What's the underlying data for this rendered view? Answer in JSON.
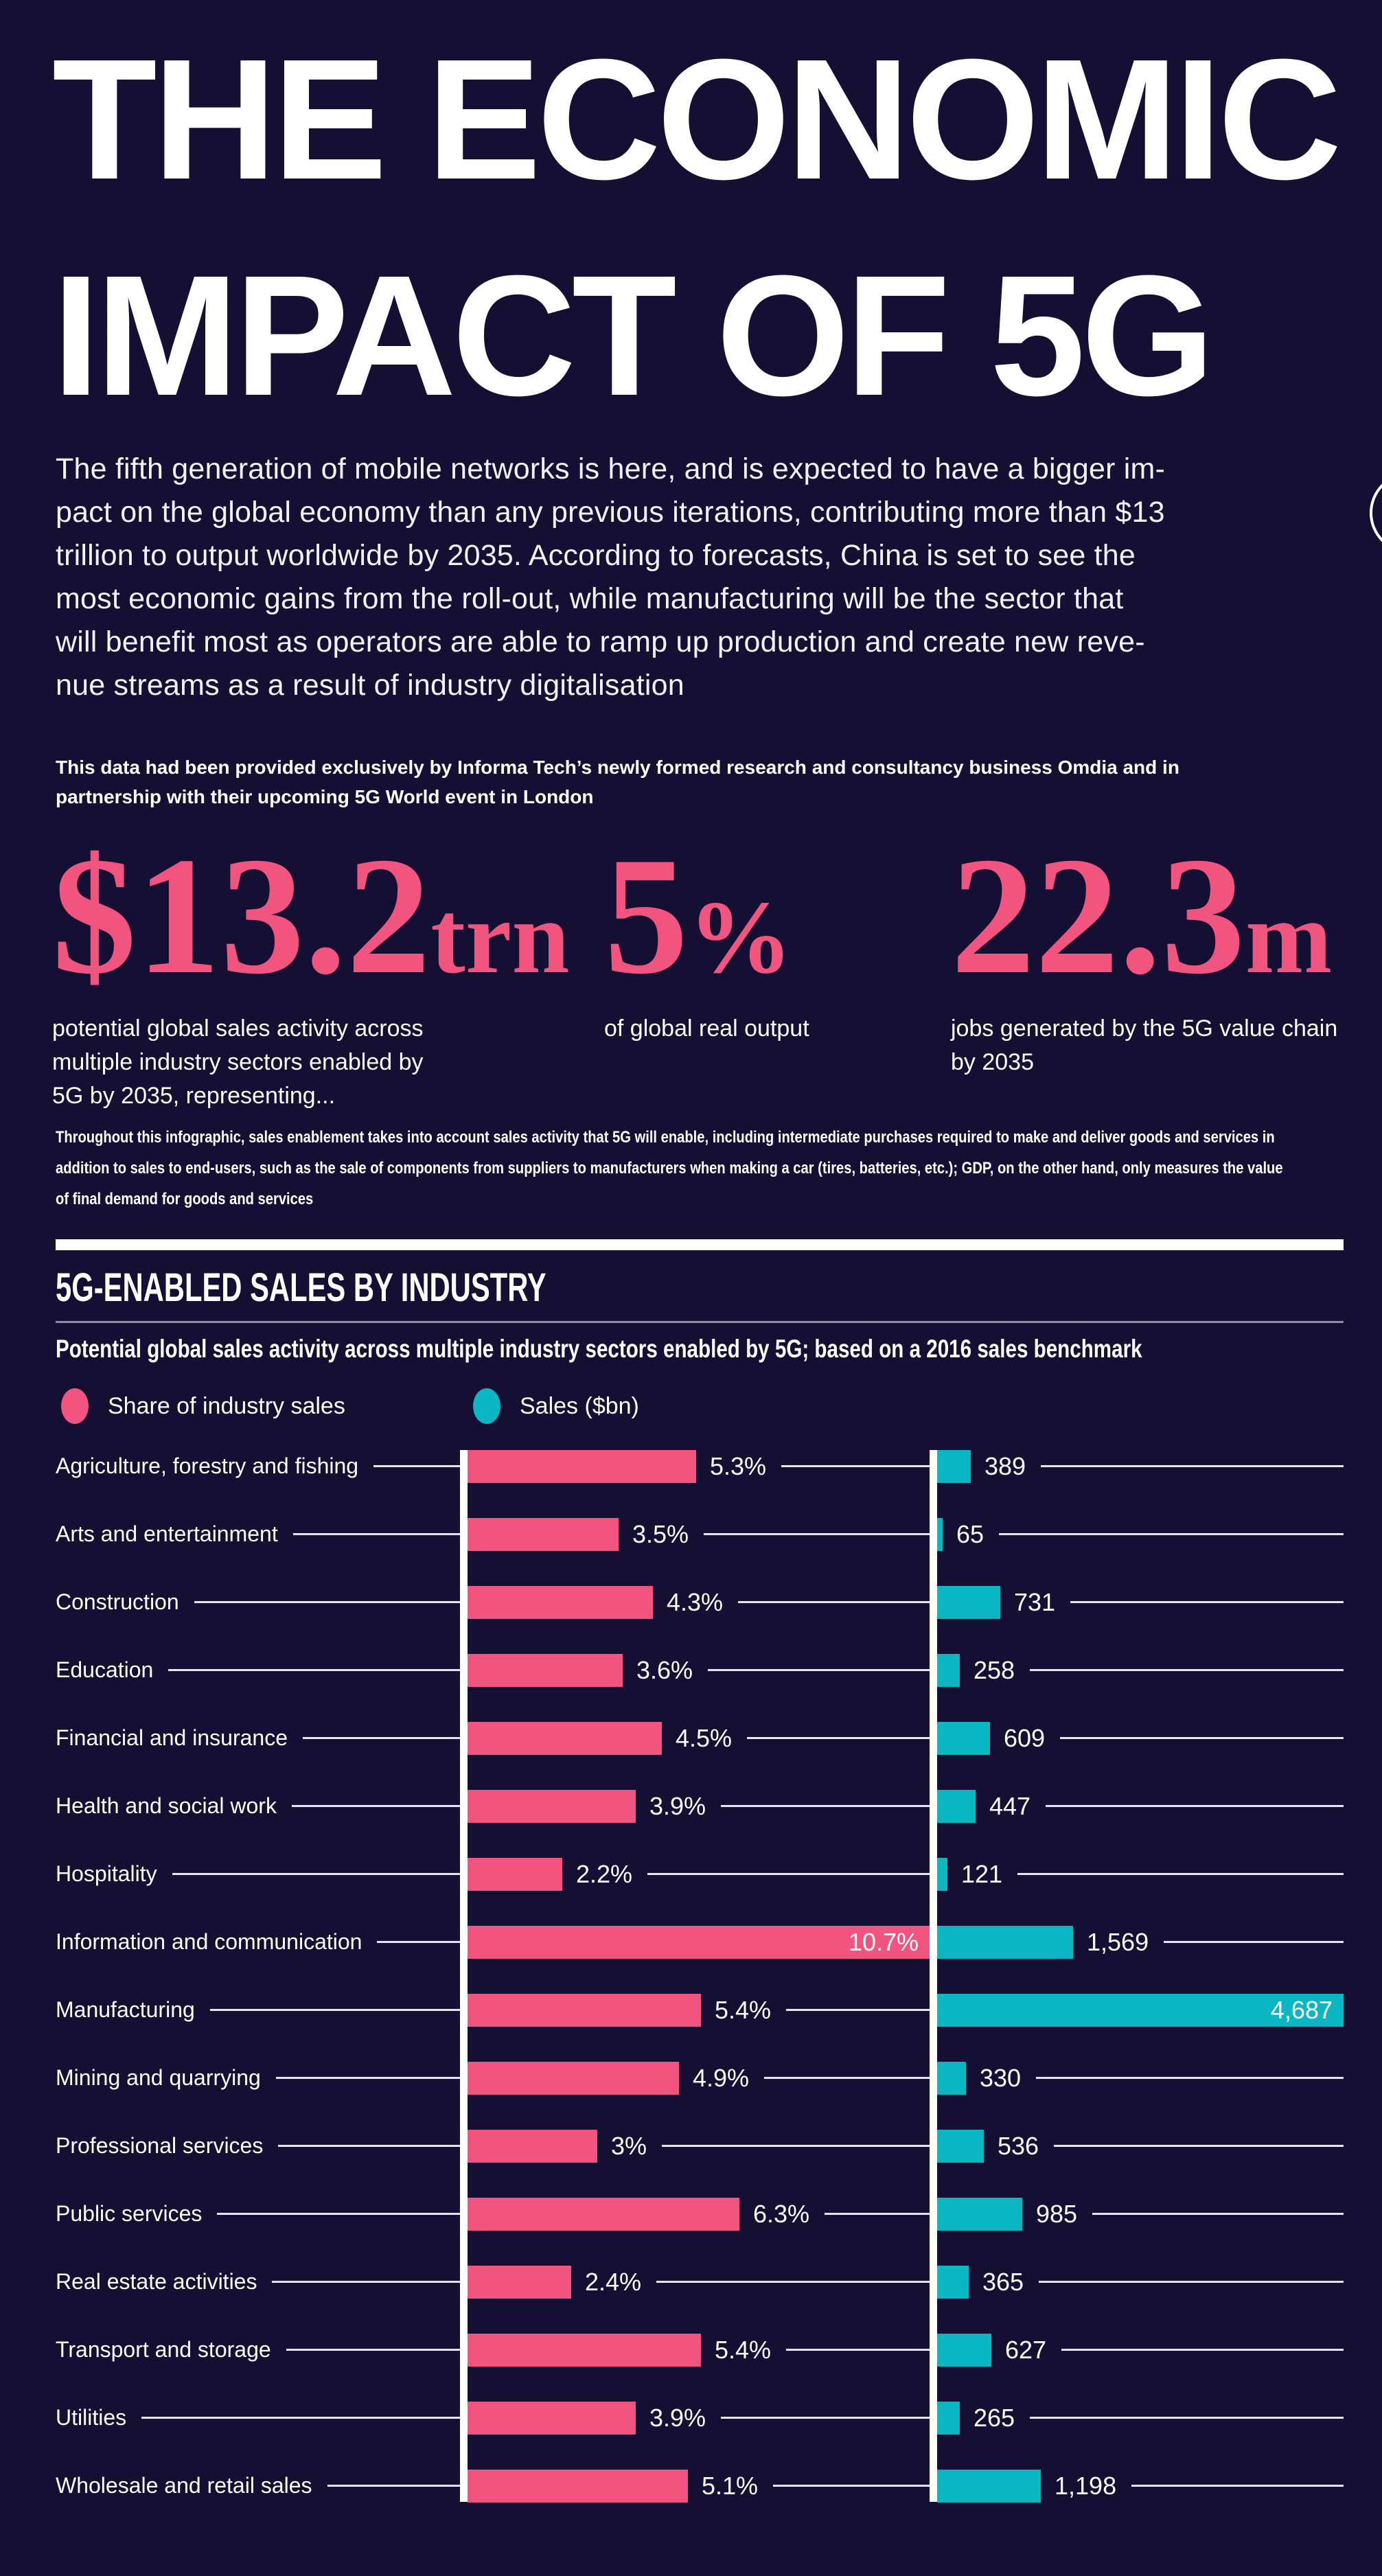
{
  "colors": {
    "background": "#150f33",
    "pink": "#f0547f",
    "teal": "#0ab6c1",
    "white": "#ffffff",
    "rule_gray": "#8f8da1"
  },
  "header": {
    "title_line1": "THE ECONOMIC",
    "title_line2": "IMPACT OF 5G",
    "intro": "The fifth generation of mobile networks is here, and is expected to have a bigger im-\npact on the global economy than any previous iterations, contributing more than $13\ntrillion to output worldwide by 2035. According to forecasts, China is set to see the\nmost economic gains from the roll-out, while manufacturing will be the sector that\nwill benefit most as operators are able to ramp up production and create new reve-\nnue streams as a result of industry digitalisation",
    "credit": "This data had been provided exclusively by Informa Tech’s newly formed research and consultancy business Omdia and in\npartnership with their upcoming 5G World event in London"
  },
  "stats": [
    {
      "prefix": "$",
      "value": "13.2",
      "suffix": "trn",
      "desc": "potential global sales activity across\nmultiple industry sectors enabled by\n5G by 2035, representing..."
    },
    {
      "prefix": "",
      "value": "5",
      "suffix": "%",
      "desc": "of global real output"
    },
    {
      "prefix": "",
      "value": "22.3",
      "suffix": "m",
      "desc": "jobs generated by the 5G value chain\nby 2035"
    }
  ],
  "footnote": "Throughout this infographic, sales enablement takes into account sales activity that 5G will enable, including intermediate purchases required to make and deliver goods and services in\naddition to sales to end-users, such as the sale of components from suppliers to manufacturers when making a car (tires, batteries, etc.); GDP, on the other hand, only measures the value\nof final demand for goods and services",
  "section": {
    "heading": "5G-ENABLED SALES BY INDUSTRY",
    "subtitle": "Potential global sales activity across multiple industry sectors enabled by 5G; based on a 2016 sales benchmark",
    "legend": [
      {
        "label": "Share of industry sales",
        "color": "#f0547f"
      },
      {
        "label": "Sales ($bn)",
        "color": "#0ab6c1"
      }
    ]
  },
  "chart_data": {
    "type": "bar",
    "orientation": "horizontal",
    "title": "5G-ENABLED SALES BY INDUSTRY",
    "subtitle": "Potential global sales activity across multiple industry sectors enabled by 5G; based on a 2016 sales benchmark",
    "categories": [
      "Agriculture, forestry and fishing",
      "Arts and entertainment",
      "Construction",
      "Education",
      "Financial and insurance",
      "Health and social work",
      "Hospitality",
      "Information and communication",
      "Manufacturing",
      "Mining and quarrying",
      "Professional services",
      "Public services",
      "Real estate activities",
      "Transport and storage",
      "Utilities",
      "Wholesale and retail sales"
    ],
    "series": [
      {
        "name": "Share of industry sales",
        "unit": "%",
        "color": "#f0547f",
        "values": [
          5.3,
          3.5,
          4.3,
          3.6,
          4.5,
          3.9,
          2.2,
          10.7,
          5.4,
          4.9,
          3,
          6.3,
          2.4,
          5.4,
          3.9,
          5.1
        ],
        "labels": [
          "5.3%",
          "3.5%",
          "4.3%",
          "3.6%",
          "4.5%",
          "3.9%",
          "2.2%",
          "10.7%",
          "5.4%",
          "4.9%",
          "3%",
          "6.3%",
          "2.4%",
          "5.4%",
          "3.9%",
          "5.1%"
        ]
      },
      {
        "name": "Sales ($bn)",
        "unit": "$bn",
        "color": "#0ab6c1",
        "values": [
          389,
          65,
          731,
          258,
          609,
          447,
          121,
          1569,
          4687,
          330,
          536,
          985,
          365,
          627,
          265,
          1198
        ],
        "labels": [
          "389",
          "65",
          "731",
          "258",
          "609",
          "447",
          "121",
          "1,569",
          "4,687",
          "330",
          "536",
          "985",
          "365",
          "627",
          "265",
          "1,198"
        ]
      }
    ],
    "share_axis_max": 10.7,
    "sales_axis_max": 4687,
    "grid": false,
    "legend_position": "top-left"
  }
}
